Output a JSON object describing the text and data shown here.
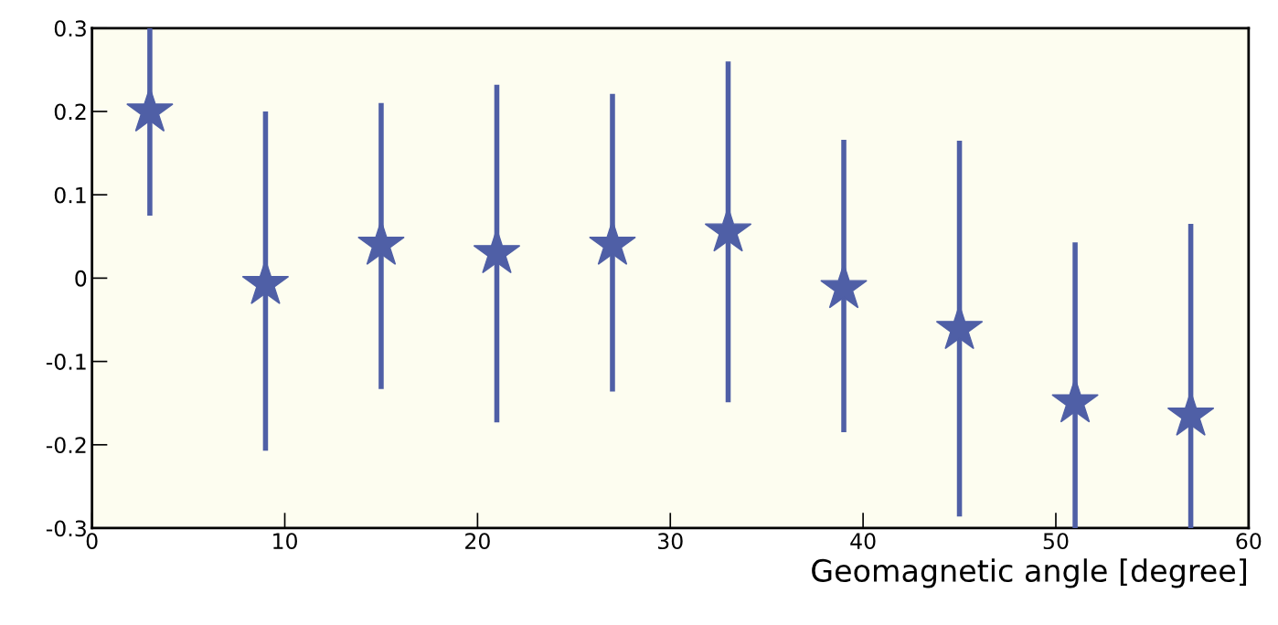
{
  "chart_data": {
    "type": "scatter",
    "xlabel": "Geomagnetic angle [degree]",
    "x": [
      3,
      9,
      15,
      21,
      27,
      33,
      39,
      45,
      51,
      57
    ],
    "values": [
      0.2,
      -0.007,
      0.04,
      0.03,
      0.04,
      0.056,
      -0.012,
      -0.061,
      -0.149,
      -0.165
    ],
    "errors": [
      [
        0.075,
        0.3
      ],
      [
        -0.207,
        0.2
      ],
      [
        -0.133,
        0.21
      ],
      [
        -0.173,
        0.232
      ],
      [
        -0.136,
        0.221
      ],
      [
        -0.149,
        0.26
      ],
      [
        -0.185,
        0.166
      ],
      [
        -0.286,
        0.165
      ],
      [
        -0.3,
        0.043
      ],
      [
        -0.3,
        0.065
      ]
    ],
    "color": "#4f5fa6",
    "marker": "star",
    "xlim": [
      0,
      60
    ],
    "xticks": [
      0,
      10,
      20,
      30,
      40,
      50,
      60
    ],
    "ylim": [
      -0.3,
      0.3
    ],
    "yticks": [
      -0.3,
      -0.2,
      -0.1,
      0,
      0.1,
      0.2,
      0.3
    ],
    "grid": false,
    "legend": false
  }
}
